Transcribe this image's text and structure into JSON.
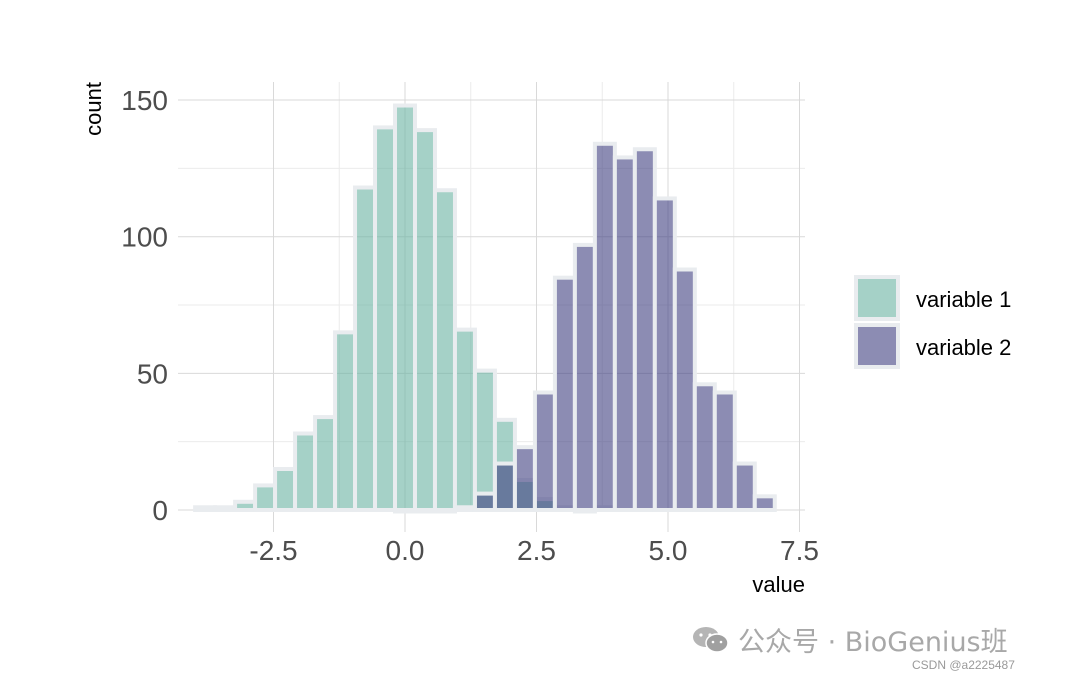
{
  "chart_data": {
    "type": "bar",
    "xlabel": "value",
    "ylabel": "count",
    "xlim": [
      -3.9,
      7.3
    ],
    "ylim": [
      0,
      155
    ],
    "x_ticks": [
      -2.5,
      0.0,
      2.5,
      5.0,
      7.5
    ],
    "x_tick_labels": [
      "-2.5",
      "0.0",
      "2.5",
      "5.0",
      "7.5"
    ],
    "y_ticks": [
      0,
      50,
      100,
      150
    ],
    "y_tick_labels": [
      "0",
      "50",
      "100",
      "150"
    ],
    "grid": true,
    "legend_position": "right",
    "bin_width": 0.38,
    "series": [
      {
        "name": "variable 1",
        "color": "#69b3a2",
        "x": [
          -3.8,
          -3.42,
          -3.04,
          -2.66,
          -2.28,
          -1.9,
          -1.52,
          -1.14,
          -0.76,
          -0.38,
          0.0,
          0.38,
          0.76,
          1.14,
          1.52,
          1.9,
          2.28,
          2.66,
          3.04,
          3.42,
          3.8
        ],
        "values": [
          1,
          1,
          3,
          9,
          15,
          28,
          34,
          65,
          118,
          140,
          148,
          139,
          117,
          66,
          51,
          33,
          11,
          4,
          1,
          0,
          1
        ]
      },
      {
        "name": "variable 2",
        "color": "#404080",
        "x": [
          0.0,
          0.38,
          0.76,
          1.14,
          1.52,
          1.9,
          2.28,
          2.66,
          3.04,
          3.42,
          3.8,
          4.18,
          4.56,
          4.94,
          5.32,
          5.7,
          6.08,
          6.46,
          6.84
        ],
        "values": [
          0,
          0,
          0,
          1,
          6,
          17,
          23,
          43,
          85,
          97,
          134,
          129,
          132,
          114,
          88,
          46,
          43,
          17,
          5
        ]
      }
    ]
  },
  "watermark": {
    "text": "公众号 · BioGenius班",
    "icon": "wechat-icon",
    "credit": "CSDN @a2225487"
  }
}
